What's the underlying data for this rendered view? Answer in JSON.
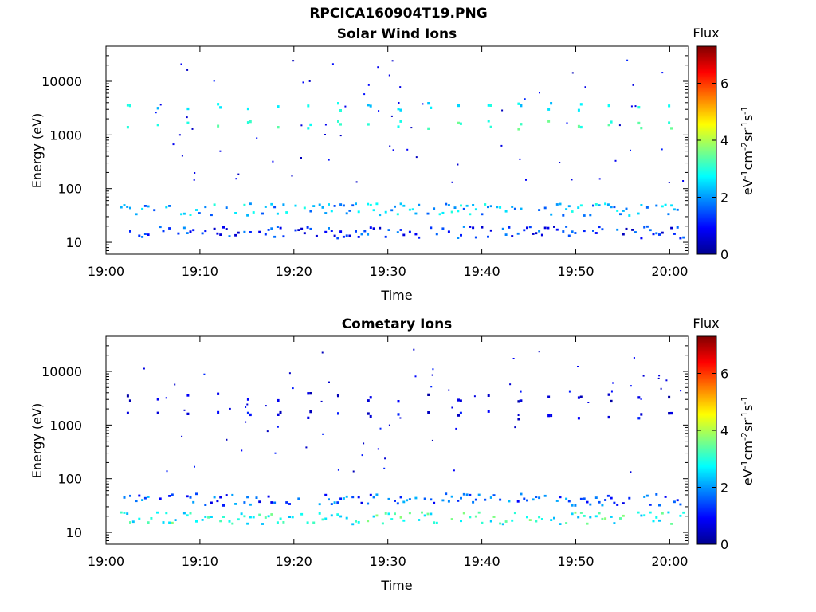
{
  "figure_title": "RPCICA160904T19.PNG",
  "colors": {
    "colormap": "jet",
    "low": "#00008f",
    "high": "#800000"
  },
  "chart_data": [
    {
      "type": "heatmap",
      "title": "Solar Wind Ions",
      "xlabel": "Time",
      "ylabel": "Energy (eV)",
      "xlim": [
        "19:00",
        "20:02"
      ],
      "ylim": [
        6,
        45000
      ],
      "yscale": "log",
      "x_ticks": [
        "19:00",
        "19:10",
        "19:20",
        "19:30",
        "19:40",
        "19:50",
        "20:00"
      ],
      "y_ticks": [
        "10",
        "100",
        "1000",
        "10000"
      ],
      "colorbar": {
        "label": "Flux",
        "unit": "eV-1cm-2sr-1s-1",
        "range": [
          0,
          7.3
        ],
        "ticks": [
          "0",
          "2",
          "4",
          "6"
        ]
      },
      "bands": [
        {
          "name": "high-energy peak",
          "energy_ev": 1500,
          "color_level": 3.2,
          "repeat_min": 3.2
        },
        {
          "name": "upper peak",
          "energy_ev": 3200,
          "color_level": 2.6,
          "repeat_min": 3.2
        },
        {
          "name": "low-energy band",
          "energy_ev": 40,
          "color_level": 2.2
        },
        {
          "name": "lowest band",
          "energy_ev": 15,
          "color_level": 1.2
        }
      ]
    },
    {
      "type": "heatmap",
      "title": "Cometary Ions",
      "xlabel": "Time",
      "ylabel": "Energy (eV)",
      "xlim": [
        "19:00",
        "20:02"
      ],
      "ylim": [
        6,
        45000
      ],
      "yscale": "log",
      "x_ticks": [
        "19:00",
        "19:10",
        "19:20",
        "19:30",
        "19:40",
        "19:50",
        "20:00"
      ],
      "y_ticks": [
        "10",
        "100",
        "1000",
        "10000"
      ],
      "colorbar": {
        "label": "Flux",
        "unit": "eV-1cm-2sr-1s-1",
        "range": [
          0,
          7.3
        ],
        "ticks": [
          "0",
          "2",
          "4",
          "6"
        ]
      },
      "bands": [
        {
          "name": "high-energy peak",
          "energy_ev": 1500,
          "color_level": 0.8,
          "repeat_min": 3.2
        },
        {
          "name": "upper peak",
          "energy_ev": 3200,
          "color_level": 0.6,
          "repeat_min": 3.2
        },
        {
          "name": "low-energy band",
          "energy_ev": 40,
          "color_level": 1.5
        },
        {
          "name": "lowest band",
          "energy_ev": 18,
          "color_level": 3.0
        }
      ]
    }
  ]
}
